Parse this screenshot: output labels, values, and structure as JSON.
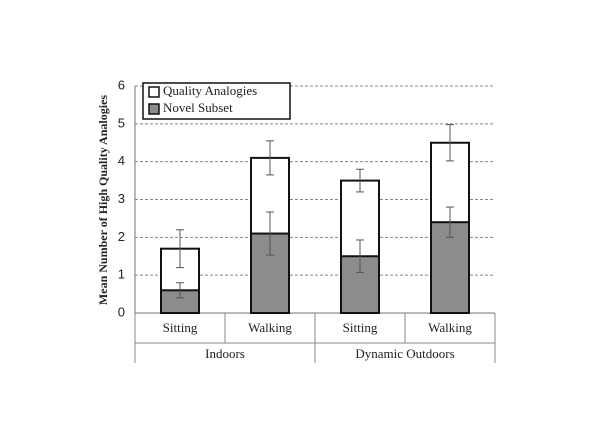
{
  "chart_data": {
    "type": "overlapping-bar",
    "y_label": "Mean Number of High Quality Analogies",
    "groups": [
      {
        "name": "Indoors",
        "categories": [
          "Sitting",
          "Walking"
        ]
      },
      {
        "name": "Dynamic Outdoors",
        "categories": [
          "Sitting",
          "Walking"
        ]
      }
    ],
    "series": [
      {
        "name": "Quality Analogies",
        "color": "#ffffff",
        "values": [
          1.7,
          4.1,
          3.5,
          4.5
        ],
        "errors": [
          0.5,
          0.45,
          0.3,
          0.48
        ]
      },
      {
        "name": "Novel Subset",
        "color": "#8c8c8c",
        "values": [
          0.6,
          2.1,
          1.5,
          2.4
        ],
        "errors": [
          0.2,
          0.57,
          0.43,
          0.4
        ]
      }
    ],
    "ylim": [
      0,
      6
    ],
    "yticks": [
      0,
      1,
      2,
      3,
      4,
      5,
      6
    ],
    "grid": true,
    "legend": "top-left"
  }
}
